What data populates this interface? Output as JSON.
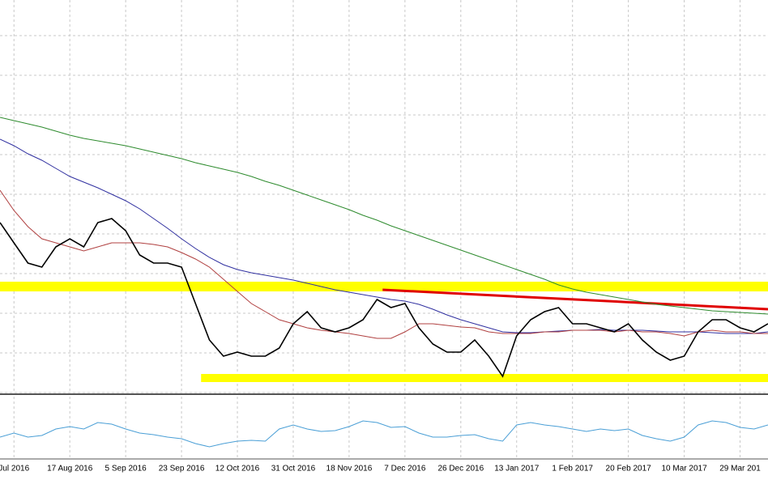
{
  "chart_data": {
    "type": "line",
    "xlim": [
      0,
      55
    ],
    "xticks": [
      {
        "value": 1,
        "label": "Jul 2016"
      },
      {
        "value": 5,
        "label": "17 Aug 2016"
      },
      {
        "value": 9,
        "label": "5 Sep 2016"
      },
      {
        "value": 13,
        "label": "23 Sep 2016"
      },
      {
        "value": 17,
        "label": "12 Oct 2016"
      },
      {
        "value": 21,
        "label": "31 Oct 2016"
      },
      {
        "value": 25,
        "label": "18 Nov 2016"
      },
      {
        "value": 29,
        "label": "7 Dec 2016"
      },
      {
        "value": 33,
        "label": "26 Dec 2016"
      },
      {
        "value": 37,
        "label": "13 Jan 2017"
      },
      {
        "value": 41,
        "label": "1 Feb 2017"
      },
      {
        "value": 45,
        "label": "20 Feb 2017"
      },
      {
        "value": 49,
        "label": "10 Mar 2017"
      },
      {
        "value": 53,
        "label": "29 Mar 201"
      }
    ],
    "ylim": [
      0,
      486
    ],
    "y2lim": [
      0,
      75
    ],
    "grid": true,
    "series": [
      {
        "color": "#2e8b2e",
        "values": [
          341,
          337,
          333,
          329,
          324,
          319,
          315,
          312,
          309,
          306,
          302,
          298,
          294,
          290,
          285,
          281,
          277,
          273,
          268,
          262,
          257,
          251,
          245,
          239,
          233,
          227,
          220,
          214,
          207,
          201,
          195,
          189,
          183,
          177,
          171,
          165,
          159,
          153,
          147,
          141,
          134,
          129,
          125,
          122,
          119,
          116,
          113,
          110,
          108,
          106,
          104,
          102,
          101,
          100,
          99,
          98
        ]
      },
      {
        "color": "#3030a0",
        "values": [
          314,
          306,
          296,
          288,
          278,
          268,
          261,
          254,
          246,
          238,
          228,
          216,
          204,
          191,
          179,
          168,
          159,
          153,
          149,
          146,
          143,
          140,
          136,
          132,
          128,
          125,
          122,
          119,
          116,
          114,
          110,
          104,
          97,
          91,
          86,
          81,
          76,
          75,
          75,
          76,
          77,
          78,
          78,
          79,
          78,
          78,
          78,
          77,
          76,
          76,
          76,
          75,
          74,
          74,
          74,
          76
        ]
      },
      {
        "color": "#b04040",
        "values": [
          251,
          226,
          206,
          191,
          186,
          181,
          176,
          181,
          186,
          186,
          186,
          184,
          181,
          174,
          166,
          156,
          141,
          126,
          111,
          101,
          91,
          86,
          81,
          78,
          76,
          74,
          71,
          68,
          68,
          76,
          86,
          86,
          84,
          82,
          81,
          76,
          74,
          74,
          74,
          76,
          76,
          78,
          78,
          78,
          76,
          78,
          76,
          76,
          74,
          71,
          76,
          78,
          76,
          76,
          74,
          74
        ]
      },
      {
        "color": "#000000",
        "values": [
          211,
          186,
          161,
          156,
          181,
          191,
          181,
          211,
          216,
          201,
          171,
          161,
          161,
          156,
          111,
          66,
          46,
          51,
          46,
          46,
          56,
          86,
          101,
          81,
          76,
          81,
          91,
          116,
          106,
          111,
          81,
          61,
          51,
          51,
          66,
          46,
          21,
          71,
          91,
          101,
          106,
          86,
          86,
          81,
          76,
          86,
          66,
          51,
          41,
          46,
          76,
          91,
          91,
          81,
          76,
          86
        ]
      },
      {
        "color": "#4a9fd6",
        "axis": "y2",
        "values": [
          25,
          30,
          25,
          27,
          35,
          38,
          35,
          43,
          41,
          35,
          30,
          28,
          25,
          23,
          17,
          13,
          17,
          20,
          21,
          20,
          35,
          40,
          35,
          32,
          33,
          38,
          45,
          43,
          37,
          38,
          30,
          25,
          25,
          27,
          28,
          23,
          20,
          40,
          43,
          40,
          38,
          35,
          32,
          35,
          33,
          35,
          27,
          23,
          20,
          25,
          40,
          45,
          43,
          37,
          35,
          40
        ]
      }
    ],
    "zones": [
      {
        "x": [
          0,
          55
        ],
        "y": [
          126,
          138
        ],
        "color": "#ffff00"
      },
      {
        "x": [
          14.4,
          55
        ],
        "y": [
          14,
          24
        ],
        "color": "#ffff00"
      }
    ],
    "trendline": {
      "x": [
        27.4,
        55
      ],
      "y": [
        128,
        104
      ],
      "color": "#e00000"
    }
  }
}
